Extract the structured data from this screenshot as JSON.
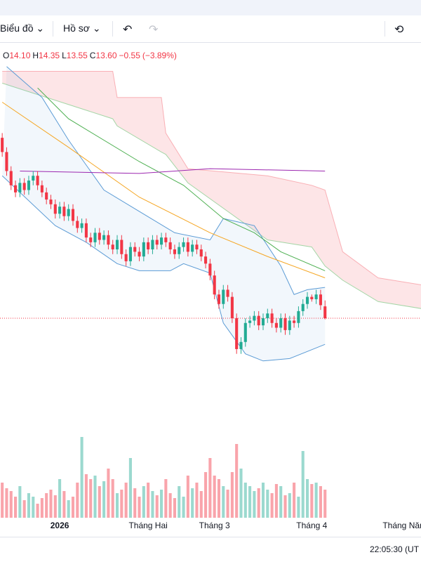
{
  "toolbar": {
    "chart_menu": "Biểu đồ",
    "profile_menu": "Hồ sơ"
  },
  "legend": {
    "items": [
      {
        "key": "O",
        "value": "14.10"
      },
      {
        "key": "H",
        "value": "14.35"
      },
      {
        "key": "L",
        "value": "13.55"
      },
      {
        "key": "C",
        "value": "13.60"
      }
    ],
    "change": "−0.55",
    "change_pct": "(−3.89%)"
  },
  "status": {
    "time": "22:05:30 (UT"
  },
  "chart_data": {
    "type": "candlestick",
    "x": [
      0,
      1,
      2,
      3,
      4,
      5,
      6,
      7,
      8,
      9,
      10,
      11,
      12,
      13,
      14,
      15,
      16,
      17,
      18,
      19,
      20,
      21,
      22,
      23,
      24,
      25,
      26,
      27,
      28,
      29,
      30,
      31,
      32,
      33,
      34,
      35,
      36,
      37,
      38,
      39,
      40,
      41,
      42,
      43,
      44,
      45,
      46,
      47,
      48,
      49,
      50,
      51,
      52,
      53,
      54,
      55,
      56,
      57,
      58,
      59,
      60,
      61,
      62,
      63,
      64,
      65,
      66,
      67,
      68,
      69,
      70,
      71,
      72,
      73
    ],
    "open": [
      21.2,
      20.6,
      19.8,
      19.2,
      18.9,
      19.3,
      19.0,
      19.4,
      19.6,
      19.2,
      18.9,
      18.6,
      18.4,
      18.0,
      18.3,
      17.9,
      18.2,
      17.7,
      17.4,
      17.6,
      17.0,
      16.8,
      17.2,
      16.9,
      17.1,
      16.7,
      16.5,
      16.9,
      16.3,
      16.0,
      16.6,
      16.4,
      16.2,
      16.8,
      16.5,
      16.9,
      16.7,
      17.0,
      16.8,
      16.5,
      16.3,
      16.6,
      16.8,
      16.4,
      16.7,
      16.5,
      16.2,
      15.9,
      15.4,
      14.6,
      14.2,
      14.8,
      14.5,
      13.6,
      12.3,
      12.6,
      13.4,
      13.5,
      13.7,
      13.3,
      13.6,
      13.8,
      13.4,
      13.2,
      13.6,
      13.1,
      13.5,
      13.4,
      13.9,
      14.2,
      14.5,
      14.4,
      14.6,
      14.1
    ],
    "high": [
      21.4,
      20.8,
      20.0,
      19.4,
      19.5,
      19.5,
      19.6,
      19.8,
      19.8,
      19.4,
      19.1,
      18.8,
      18.6,
      18.5,
      18.5,
      18.4,
      18.4,
      17.9,
      17.8,
      17.8,
      17.2,
      17.4,
      17.4,
      17.3,
      17.3,
      16.9,
      17.1,
      17.1,
      16.5,
      16.8,
      16.8,
      16.6,
      17.0,
      17.0,
      17.1,
      17.1,
      17.2,
      17.2,
      17.0,
      16.7,
      16.8,
      17.0,
      17.0,
      16.9,
      16.9,
      16.7,
      16.4,
      16.1,
      15.6,
      14.8,
      15.0,
      15.0,
      14.7,
      13.8,
      12.8,
      13.6,
      13.7,
      13.9,
      13.9,
      13.8,
      14.0,
      14.0,
      13.6,
      13.8,
      13.8,
      13.7,
      13.7,
      14.1,
      14.4,
      14.7,
      14.6,
      14.8,
      14.8,
      14.35
    ],
    "low": [
      20.4,
      19.6,
      19.0,
      18.7,
      18.7,
      18.8,
      18.8,
      19.2,
      19.0,
      18.7,
      18.4,
      18.2,
      17.8,
      17.8,
      17.7,
      17.7,
      17.5,
      17.2,
      17.2,
      16.8,
      16.6,
      16.6,
      16.7,
      16.7,
      16.5,
      16.3,
      16.3,
      16.1,
      15.8,
      15.8,
      16.2,
      16.0,
      16.0,
      16.3,
      16.3,
      16.5,
      16.5,
      16.6,
      16.3,
      16.1,
      16.1,
      16.4,
      16.2,
      16.2,
      16.3,
      16.0,
      15.7,
      15.2,
      14.4,
      14.0,
      14.0,
      14.3,
      13.4,
      12.1,
      12.1,
      12.4,
      13.2,
      13.3,
      13.1,
      13.1,
      13.4,
      13.2,
      13.0,
      13.0,
      12.9,
      12.9,
      13.2,
      13.2,
      13.7,
      14.0,
      14.3,
      14.2,
      13.95,
      13.55
    ],
    "close": [
      20.6,
      19.8,
      19.2,
      18.9,
      19.3,
      19.0,
      19.4,
      19.6,
      19.2,
      18.9,
      18.6,
      18.4,
      18.0,
      18.3,
      17.9,
      18.2,
      17.7,
      17.4,
      17.6,
      17.0,
      16.8,
      17.2,
      16.9,
      17.1,
      16.7,
      16.5,
      16.9,
      16.3,
      16.0,
      16.6,
      16.4,
      16.2,
      16.8,
      16.5,
      16.9,
      16.7,
      17.0,
      16.8,
      16.5,
      16.3,
      16.6,
      16.8,
      16.4,
      16.7,
      16.5,
      16.2,
      15.9,
      15.4,
      14.6,
      14.2,
      14.8,
      14.5,
      13.6,
      12.3,
      12.6,
      13.4,
      13.5,
      13.7,
      13.3,
      13.6,
      13.8,
      13.4,
      13.2,
      13.6,
      13.1,
      13.5,
      13.4,
      13.9,
      14.2,
      14.5,
      14.4,
      14.6,
      14.15,
      13.6
    ],
    "volume": [
      5.0,
      4.2,
      3.8,
      3.0,
      4.5,
      2.5,
      3.5,
      3.0,
      2.0,
      2.8,
      3.5,
      4.0,
      3.2,
      5.5,
      3.8,
      2.5,
      3.0,
      5.0,
      11.5,
      6.2,
      5.5,
      6.0,
      4.5,
      5.2,
      7.0,
      5.5,
      3.5,
      4.0,
      5.0,
      8.5,
      4.2,
      3.0,
      4.5,
      5.0,
      3.8,
      3.2,
      4.0,
      5.5,
      3.5,
      2.8,
      4.5,
      3.0,
      6.0,
      4.2,
      5.0,
      3.8,
      6.5,
      8.5,
      6.0,
      5.5,
      4.5,
      4.0,
      6.5,
      10.5,
      7.0,
      5.0,
      4.5,
      3.8,
      4.2,
      5.0,
      4.0,
      3.5,
      4.8,
      4.5,
      3.2,
      3.5,
      5.0,
      3.0,
      9.5,
      5.5,
      4.8,
      5.0,
      4.5,
      4.0
    ],
    "up_color": "#22ab94",
    "down_color": "#f23645",
    "xlim": [
      -0.5,
      94.7
    ],
    "ylim": [
      9.25,
      25.17
    ],
    "volume_ylim": [
      0,
      15
    ],
    "xticks": [
      {
        "value": 13,
        "label": "2026"
      },
      {
        "value": 33,
        "label": "Tháng Hai"
      },
      {
        "value": 48,
        "label": "Tháng 3"
      },
      {
        "value": 70,
        "label": "Tháng 4"
      },
      {
        "value": 91,
        "label": "Tháng Năm"
      }
    ],
    "cloud": {
      "x": [
        0,
        25,
        26,
        36,
        37,
        42,
        60,
        70,
        73,
        77,
        85,
        95
      ],
      "upper": [
        24.0,
        24.0,
        22.9,
        22.9,
        21.4,
        19.9,
        19.6,
        19.2,
        19.0,
        16.4,
        15.3,
        15.0
      ],
      "lower": [
        23.5,
        22.0,
        21.7,
        20.6,
        20.5,
        19.3,
        16.9,
        16.6,
        15.8,
        15.2,
        14.3,
        14.0
      ],
      "color": "#f23645",
      "edge_color": "#a5d6a7"
    },
    "band": {
      "upper": {
        "x": [
          1,
          9,
          15,
          23,
          31,
          39,
          47,
          50,
          57,
          63,
          66,
          69,
          73
        ],
        "values": [
          24.2,
          22.9,
          21.1,
          19.0,
          18.1,
          17.2,
          16.9,
          17.8,
          17.5,
          15.8,
          14.6,
          14.8,
          14.9
        ]
      },
      "lower": {
        "x": [
          0,
          12,
          19,
          26,
          31,
          38,
          41,
          47,
          50,
          55,
          59,
          65,
          69,
          73
        ],
        "values": [
          19.6,
          17.5,
          16.8,
          15.9,
          15.6,
          15.6,
          15.9,
          15.5,
          13.4,
          12.1,
          11.8,
          11.9,
          12.2,
          12.5
        ]
      },
      "color": "#5b9bd5"
    },
    "series": [
      {
        "x": [
          0,
          15,
          31,
          47,
          60,
          73
        ],
        "values": [
          22.7,
          20.8,
          18.7,
          17.2,
          16.2,
          15.3
        ],
        "color": "#f5a623"
      },
      {
        "x": [
          8,
          15,
          31,
          41,
          50,
          57,
          63,
          73
        ],
        "values": [
          23.3,
          22.0,
          20.2,
          19.2,
          17.8,
          17.2,
          16.4,
          15.6
        ],
        "color": "#4caf50"
      },
      {
        "x": [
          4,
          31,
          47,
          73
        ],
        "values": [
          19.8,
          19.7,
          19.9,
          19.8
        ],
        "color": "#9c27b0"
      }
    ]
  }
}
